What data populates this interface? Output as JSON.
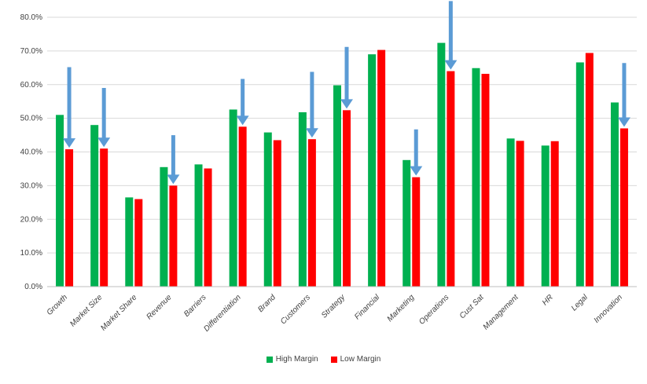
{
  "chart_data": {
    "type": "bar",
    "title": "",
    "xlabel": "",
    "ylabel": "",
    "ylim": [
      0,
      80
    ],
    "y_tick_labels": [
      "0.0%",
      "10.0%",
      "20.0%",
      "30.0%",
      "40.0%",
      "50.0%",
      "60.0%",
      "70.0%",
      "80.0%"
    ],
    "grid": "horizontal",
    "legend_position": "bottom",
    "categories": [
      "Growth",
      "Market Size",
      "Market Share",
      "Revenue",
      "Barriers",
      "Differentiation",
      "Brand",
      "Customers",
      "Strategy",
      "Financial",
      "Marketing",
      "Operations",
      "Cust Sat",
      "Management",
      "HR",
      "Legal",
      "Innovation"
    ],
    "series": [
      {
        "name": "High Margin",
        "color": "#00B050",
        "values": [
          51.0,
          48.0,
          26.5,
          35.5,
          36.3,
          52.6,
          45.8,
          51.8,
          59.8,
          69.0,
          37.6,
          72.4,
          64.9,
          44.0,
          41.9,
          66.6,
          54.7
        ]
      },
      {
        "name": "Low Margin",
        "color": "#FF0000",
        "values": [
          40.8,
          41.0,
          26.0,
          30.0,
          35.1,
          47.5,
          43.5,
          43.8,
          52.4,
          70.3,
          32.5,
          64.0,
          63.2,
          43.3,
          43.2,
          69.4,
          47.0
        ]
      }
    ],
    "annotations": {
      "type": "down-arrow",
      "color": "#5B9BD5",
      "categories": [
        "Growth",
        "Market Size",
        "Revenue",
        "Differentiation",
        "Customers",
        "Strategy",
        "Marketing",
        "Operations",
        "Innovation"
      ]
    }
  }
}
